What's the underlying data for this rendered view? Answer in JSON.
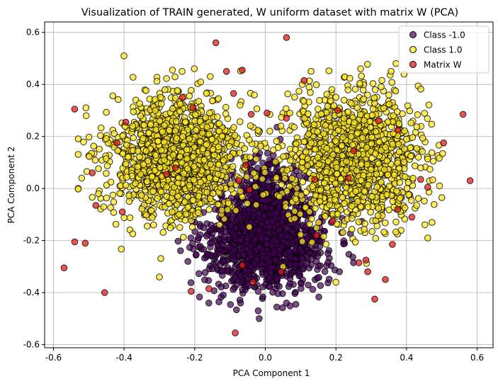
{
  "chart_data": {
    "type": "scatter",
    "title": "Visualization of TRAIN generated, W uniform dataset with matrix W (PCA)",
    "xlabel": "PCA Component 1",
    "ylabel": "PCA Component 2",
    "xlim": [
      -0.625,
      0.645
    ],
    "ylim": [
      -0.612,
      0.64
    ],
    "xticks": [
      "-0.6",
      "-0.4",
      "-0.2",
      "0.0",
      "0.2",
      "0.4",
      "0.6"
    ],
    "xtick_values": [
      -0.6,
      -0.4,
      -0.2,
      0.0,
      0.2,
      0.4,
      0.6
    ],
    "yticks": [
      "-0.6",
      "-0.4",
      "-0.2",
      "0.0",
      "0.2",
      "0.4",
      "0.6"
    ],
    "ytick_values": [
      -0.6,
      -0.4,
      -0.2,
      0.0,
      0.2,
      0.4,
      0.6
    ],
    "grid": true,
    "legend_position": "top-right",
    "series": [
      {
        "name": "Class -1.0",
        "color": "#440154",
        "alpha": 0.7,
        "clusters": [
          {
            "cx": 0.0,
            "cy": -0.2,
            "sx": 0.085,
            "sy": 0.095,
            "n": 1300
          },
          {
            "cx": 0.0,
            "cy": -0.03,
            "sx": 0.05,
            "sy": 0.08,
            "n": 250
          }
        ],
        "points": [
          [
            -0.07,
            -0.44
          ],
          [
            -0.02,
            -0.47
          ],
          [
            0.06,
            -0.44
          ],
          [
            -0.16,
            -0.44
          ],
          [
            0.08,
            0.05
          ],
          [
            0.21,
            -0.32
          ]
        ]
      },
      {
        "name": "Class 1.0",
        "color": "#fde725",
        "alpha": 0.75,
        "clusters": [
          {
            "cx": -0.25,
            "cy": 0.12,
            "sx": 0.095,
            "sy": 0.12,
            "n": 1350
          },
          {
            "cx": 0.25,
            "cy": 0.12,
            "sx": 0.095,
            "sy": 0.12,
            "n": 1350
          }
        ],
        "points": [
          [
            -0.4,
            0.51
          ],
          [
            -0.3,
            -0.34
          ],
          [
            0.27,
            0.46
          ],
          [
            0.46,
            -0.19
          ],
          [
            0.5,
            -0.035
          ],
          [
            0.2,
            -0.36
          ],
          [
            -0.52,
            0.04
          ],
          [
            0.05,
            -0.3
          ]
        ]
      },
      {
        "name": "Matrix W",
        "color": "#e41a1c",
        "alpha": 0.75,
        "points": [
          [
            -0.57,
            -0.305
          ],
          [
            -0.54,
            0.305
          ],
          [
            -0.54,
            -0.205
          ],
          [
            -0.51,
            -0.21
          ],
          [
            -0.49,
            0.06
          ],
          [
            -0.48,
            -0.065
          ],
          [
            -0.455,
            -0.4
          ],
          [
            -0.42,
            0.175
          ],
          [
            -0.405,
            -0.09
          ],
          [
            -0.395,
            0.255
          ],
          [
            -0.28,
            0.055
          ],
          [
            -0.255,
            0.08
          ],
          [
            -0.235,
            0.35
          ],
          [
            -0.21,
            -0.395
          ],
          [
            -0.205,
            0.31
          ],
          [
            -0.16,
            -0.385
          ],
          [
            -0.14,
            0.56
          ],
          [
            -0.11,
            0.45
          ],
          [
            -0.09,
            0.365
          ],
          [
            -0.085,
            -0.555
          ],
          [
            -0.075,
            0.03
          ],
          [
            -0.065,
            0.455
          ],
          [
            -0.065,
            -0.295
          ],
          [
            -0.055,
            0.09
          ],
          [
            -0.045,
            -0.005
          ],
          [
            -0.04,
            0.285
          ],
          [
            -0.035,
            -0.36
          ],
          [
            0.005,
            0.29
          ],
          [
            0.045,
            -0.32
          ],
          [
            0.06,
            0.27
          ],
          [
            0.06,
            0.58
          ],
          [
            0.11,
            0.415
          ],
          [
            0.14,
            0.035
          ],
          [
            0.145,
            -0.18
          ],
          [
            0.19,
            -0.125
          ],
          [
            0.205,
            0.3
          ],
          [
            0.235,
            0.04
          ],
          [
            0.25,
            0.145
          ],
          [
            0.265,
            -0.285
          ],
          [
            0.285,
            -0.275
          ],
          [
            0.29,
            -0.32
          ],
          [
            0.31,
            -0.425
          ],
          [
            0.32,
            0.26
          ],
          [
            0.34,
            -0.35
          ],
          [
            0.36,
            -0.215
          ],
          [
            0.375,
            -0.08
          ],
          [
            0.375,
            0.225
          ],
          [
            0.415,
            -0.11
          ],
          [
            0.44,
            0.035
          ],
          [
            0.46,
            0.005
          ],
          [
            0.505,
            0.175
          ],
          [
            0.56,
            0.285
          ],
          [
            0.58,
            0.03
          ]
        ]
      }
    ]
  }
}
